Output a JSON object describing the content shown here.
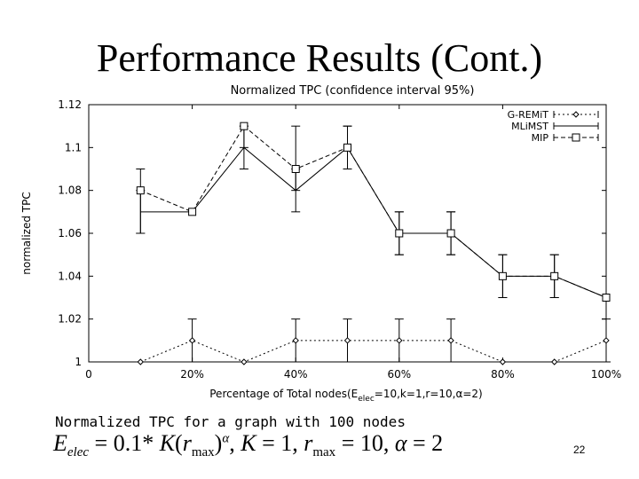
{
  "slide": {
    "title": "Performance Results (Cont.)",
    "caption": "Normalized TPC for a graph with 100 nodes",
    "formula": {
      "lhs_var": "E",
      "lhs_sub": "elec",
      "coeff": " = 0.1* ",
      "k_var": "K",
      "open": "(",
      "r_var": "r",
      "r_sub": "max",
      "close": ")",
      "alpha": "α",
      "rest1": ", ",
      "k2": "K",
      "rest2": " = 1, ",
      "r2": "r",
      "r2_sub": "max",
      "rest3": " = 10, ",
      "alpha2": "α",
      "rest4": " = 2"
    },
    "page_number": "22"
  },
  "chart_data": {
    "type": "line",
    "title": "Normalized TPC (confidence interval 95%)",
    "xlabel": "Percentage of Total nodes(E",
    "xlabel_sub": "elec",
    "xlabel_rest": "=10,k=1,r=10,α=2)",
    "ylabel": "normalized TPC",
    "xlim": [
      0,
      100
    ],
    "ylim": [
      1,
      1.12
    ],
    "x_ticks": [
      0,
      20,
      40,
      60,
      80,
      100
    ],
    "x_tick_labels": [
      "0",
      "20%",
      "40%",
      "60%",
      "80%",
      "100%"
    ],
    "y_ticks": [
      1,
      1.02,
      1.04,
      1.06,
      1.08,
      1.1,
      1.12
    ],
    "y_tick_labels": [
      "1",
      "1.02",
      "1.04",
      "1.06",
      "1.08",
      "1.1",
      "1.12"
    ],
    "grid": false,
    "legend_position": "top-right",
    "series": [
      {
        "name": "G-REMiT",
        "marker": "diamond",
        "dash": "2,3",
        "x": [
          10,
          20,
          30,
          40,
          50,
          60,
          70,
          80,
          90,
          100
        ],
        "y": [
          1.0,
          1.01,
          1.0,
          1.01,
          1.01,
          1.01,
          1.01,
          1.0,
          1.0,
          1.01
        ],
        "err_low": [
          1.0,
          1.0,
          1.0,
          1.0,
          1.0,
          1.0,
          1.0,
          1.0,
          1.0,
          1.0
        ],
        "err_high": [
          1.0,
          1.02,
          1.0,
          1.02,
          1.02,
          1.02,
          1.02,
          1.0,
          1.0,
          1.02
        ]
      },
      {
        "name": "MLiMST",
        "marker": "none",
        "dash": "",
        "x": [
          10,
          20,
          30,
          40,
          50,
          60,
          70,
          80,
          90,
          100
        ],
        "y": [
          1.07,
          1.07,
          1.1,
          1.08,
          1.1,
          1.06,
          1.06,
          1.04,
          1.04,
          1.03
        ],
        "err_low": [
          1.06,
          1.07,
          1.09,
          1.07,
          1.09,
          1.05,
          1.05,
          1.03,
          1.03,
          1.03
        ],
        "err_high": [
          1.08,
          1.07,
          1.11,
          1.09,
          1.11,
          1.07,
          1.07,
          1.05,
          1.05,
          1.03
        ]
      },
      {
        "name": "MIP",
        "marker": "square",
        "dash": "5,3",
        "x": [
          10,
          20,
          30,
          40,
          50,
          60,
          70,
          80,
          90,
          100
        ],
        "y": [
          1.08,
          1.07,
          1.11,
          1.09,
          1.1,
          1.06,
          1.06,
          1.04,
          1.04,
          1.03
        ],
        "err_low": [
          1.06,
          1.07,
          1.1,
          1.08,
          1.09,
          1.05,
          1.05,
          1.03,
          1.03,
          1.03
        ],
        "err_high": [
          1.09,
          1.07,
          1.11,
          1.11,
          1.11,
          1.07,
          1.07,
          1.05,
          1.05,
          1.03
        ]
      }
    ]
  }
}
